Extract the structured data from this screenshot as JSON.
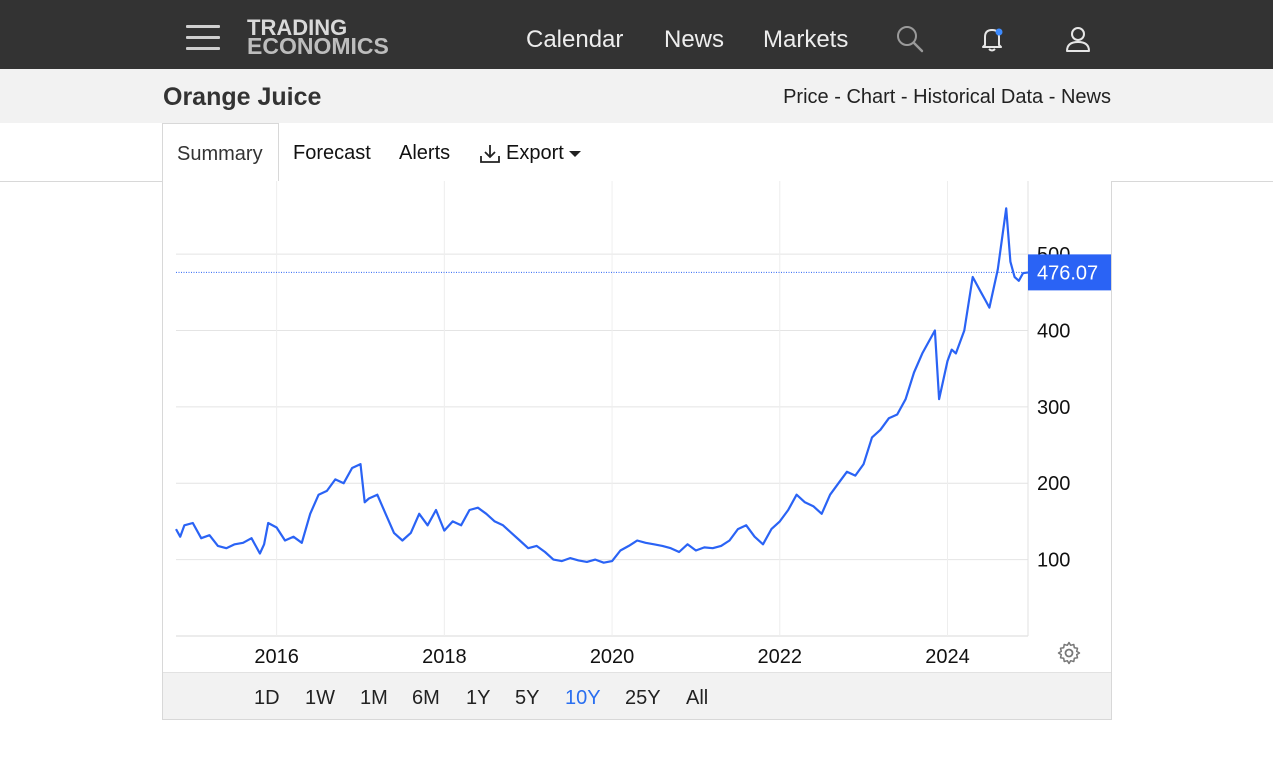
{
  "nav": {
    "logo_line1": "TRADING",
    "logo_line2": "ECONOMICS",
    "links": [
      "Calendar",
      "News",
      "Markets"
    ],
    "icons": [
      "menu-icon",
      "search-icon",
      "bell-icon",
      "user-icon"
    ]
  },
  "header": {
    "title": "Orange Juice",
    "links": [
      "Price",
      "Chart",
      "Historical Data",
      "News"
    ],
    "separator": "-"
  },
  "tabs": {
    "summary": "Summary",
    "forecast": "Forecast",
    "alerts": "Alerts",
    "export": "Export"
  },
  "ranges": {
    "items": [
      "1D",
      "1W",
      "1M",
      "6M",
      "1Y",
      "5Y",
      "10Y",
      "25Y",
      "All"
    ],
    "active": "10Y"
  },
  "chart_data": {
    "type": "line",
    "title": "",
    "xlabel": "",
    "ylabel": "",
    "x_ticks": [
      "2016",
      "2018",
      "2020",
      "2022",
      "2024"
    ],
    "y_ticks": [
      100,
      200,
      300,
      400,
      500
    ],
    "ylim": [
      0,
      580
    ],
    "xlim": [
      2014.8,
      2024.96
    ],
    "grid": true,
    "line_color": "#2a63f5",
    "last_value": 476.07,
    "last_value_label": "476.07",
    "series": [
      {
        "x": [
          2014.8,
          2014.85,
          2014.9,
          2015.0,
          2015.1,
          2015.2,
          2015.3,
          2015.4,
          2015.5,
          2015.6,
          2015.7,
          2015.8,
          2015.85,
          2015.9,
          2016.0,
          2016.1,
          2016.2,
          2016.3,
          2016.4,
          2016.5,
          2016.6,
          2016.7,
          2016.8,
          2016.9,
          2017.0,
          2017.05,
          2017.1,
          2017.2,
          2017.3,
          2017.4,
          2017.5,
          2017.6,
          2017.7,
          2017.8,
          2017.9,
          2018.0,
          2018.1,
          2018.2,
          2018.3,
          2018.4,
          2018.5,
          2018.6,
          2018.7,
          2018.8,
          2018.9,
          2019.0,
          2019.1,
          2019.2,
          2019.3,
          2019.4,
          2019.5,
          2019.6,
          2019.7,
          2019.8,
          2019.9,
          2020.0,
          2020.1,
          2020.2,
          2020.3,
          2020.4,
          2020.5,
          2020.6,
          2020.7,
          2020.8,
          2020.9,
          2021.0,
          2021.1,
          2021.2,
          2021.3,
          2021.4,
          2021.5,
          2021.6,
          2021.7,
          2021.8,
          2021.9,
          2022.0,
          2022.1,
          2022.2,
          2022.3,
          2022.4,
          2022.5,
          2022.6,
          2022.7,
          2022.8,
          2022.9,
          2023.0,
          2023.1,
          2023.2,
          2023.3,
          2023.4,
          2023.5,
          2023.6,
          2023.7,
          2023.8,
          2023.85,
          2023.9,
          2024.0,
          2024.05,
          2024.1,
          2024.2,
          2024.3,
          2024.4,
          2024.45,
          2024.5,
          2024.6,
          2024.65,
          2024.7,
          2024.75,
          2024.8,
          2024.85,
          2024.9,
          2024.96
        ],
        "y": [
          140,
          130,
          145,
          148,
          128,
          132,
          118,
          115,
          120,
          122,
          128,
          108,
          120,
          148,
          142,
          125,
          130,
          122,
          160,
          185,
          190,
          205,
          200,
          220,
          225,
          175,
          180,
          185,
          160,
          135,
          125,
          135,
          160,
          145,
          165,
          138,
          150,
          145,
          165,
          168,
          160,
          150,
          145,
          135,
          125,
          115,
          118,
          110,
          100,
          98,
          102,
          99,
          97,
          100,
          96,
          98,
          112,
          118,
          125,
          122,
          120,
          118,
          115,
          110,
          120,
          112,
          116,
          115,
          118,
          125,
          140,
          145,
          130,
          120,
          140,
          150,
          165,
          185,
          175,
          170,
          160,
          185,
          200,
          215,
          210,
          225,
          260,
          270,
          285,
          290,
          310,
          345,
          370,
          390,
          400,
          310,
          360,
          375,
          370,
          400,
          470,
          450,
          440,
          430,
          480,
          520,
          560,
          490,
          470,
          465,
          475,
          476.07
        ]
      }
    ]
  }
}
